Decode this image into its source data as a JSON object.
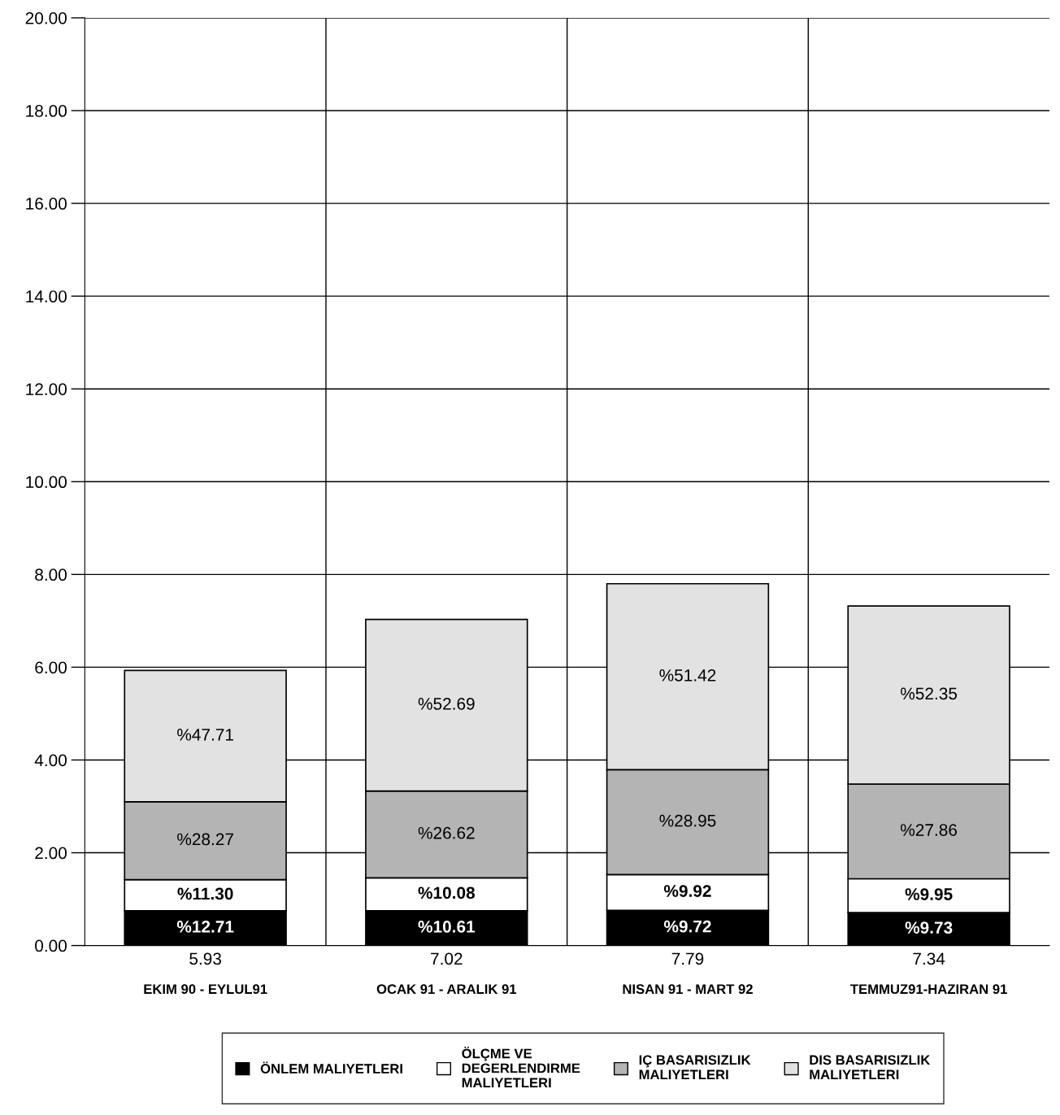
{
  "chart_data": {
    "type": "bar",
    "stacked": true,
    "categories": [
      "EKIM 90 - EYLUL91",
      "OCAK 91 - ARALIK 91",
      "NISAN 91 - MART 92",
      "TEMMUZ91-HAZIRAN 91"
    ],
    "series": [
      {
        "name": "ÖNLEM MALIYETLERI",
        "color": "#000000",
        "values": [
          0.75,
          0.75,
          0.76,
          0.71
        ]
      },
      {
        "name": "ÖLÇME VE\nDEGERLENDIRME\nMALIYETLERI",
        "color": "#ffffff",
        "values": [
          0.67,
          0.71,
          0.77,
          0.73
        ]
      },
      {
        "name": "IÇ BASARISIZLIK\nMALIYETLERI",
        "color": "#b4b4b4",
        "values": [
          1.68,
          1.87,
          2.26,
          2.04
        ]
      },
      {
        "name": "DIS BASARISIZLIK\nMALIYETLERI",
        "color": "#e2e2e2",
        "values": [
          2.83,
          3.7,
          4.01,
          3.84
        ]
      }
    ],
    "annotations": [
      "%12.71",
      "%10.61",
      "%9.72",
      "%9.73",
      "%11.30",
      "%10.08",
      "%9.92",
      "%9.95",
      "%28.27",
      "%26.62",
      "%28.95",
      "%27.86",
      "%47.71",
      "%52.69",
      "%51.42",
      "%52.35"
    ],
    "totals": [
      "5.93",
      "7.02",
      "7.79",
      "7.34"
    ],
    "ylim": [
      0,
      20
    ],
    "yticks": [
      {
        "value": 0,
        "label": "0.00"
      },
      {
        "value": 2,
        "label": "2.00"
      },
      {
        "value": 4,
        "label": "4.00"
      },
      {
        "value": 6,
        "label": "6.00"
      },
      {
        "value": 8,
        "label": "8.00"
      },
      {
        "value": 10,
        "label": "10.00"
      },
      {
        "value": 12,
        "label": "12.00"
      },
      {
        "value": 14,
        "label": "14.00"
      },
      {
        "value": 16,
        "label": "16.00"
      },
      {
        "value": 18,
        "label": "18.00"
      },
      {
        "value": 20,
        "label": "20.00"
      }
    ],
    "grid": true,
    "legend": "bottom"
  }
}
